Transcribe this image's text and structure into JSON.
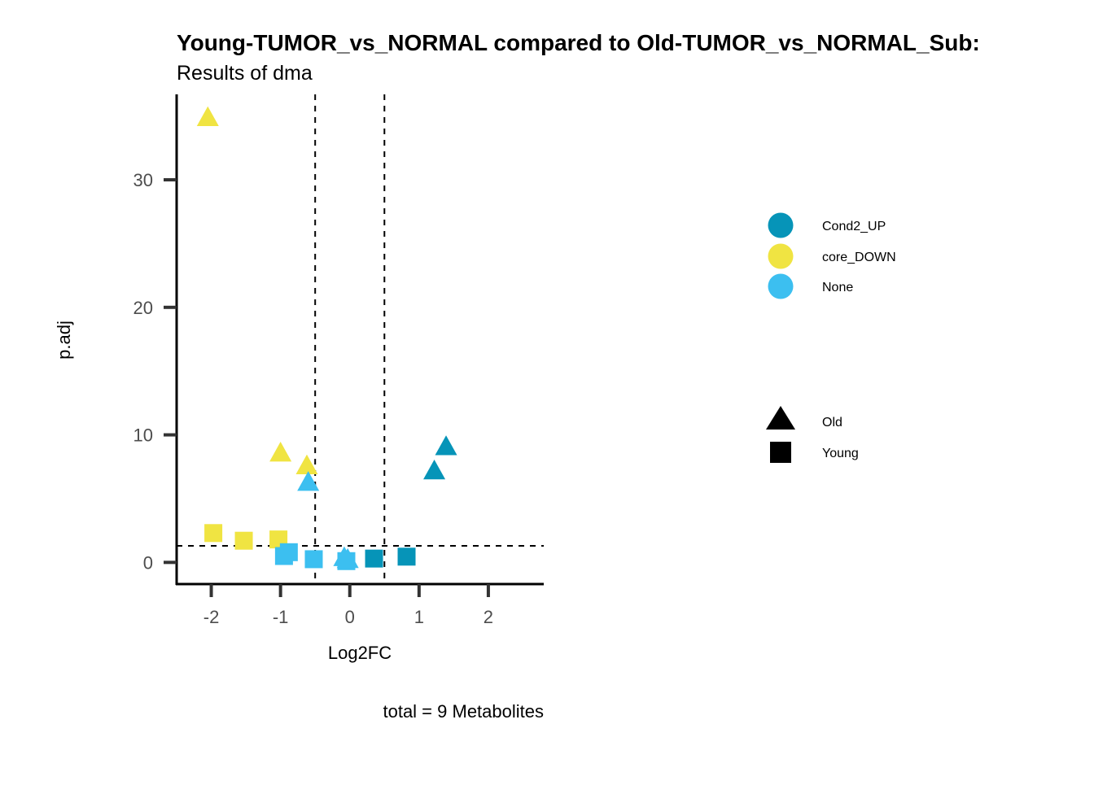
{
  "chart_data": {
    "type": "scatter",
    "title": "Young-TUMOR_vs_NORMAL compared to Old-TUMOR_vs_NORMAL_Sub:",
    "subtitle": "Results of dma",
    "xlabel": "Log2FC",
    "ylabel": "p.adj",
    "caption": "total = 9 Metabolites",
    "xlim": [
      -2.5,
      2.8
    ],
    "ylim": [
      -1.7,
      36.7
    ],
    "xticks": [
      -2,
      -1,
      0,
      1,
      2
    ],
    "xtick_labels": [
      "-2",
      "-1",
      "0",
      "1",
      "2"
    ],
    "yticks": [
      0,
      10,
      20,
      30
    ],
    "ytick_labels": [
      "0",
      "10",
      "20",
      "30"
    ],
    "reference_lines": {
      "vertical": [
        -0.5,
        0.5
      ],
      "horizontal": [
        1.3
      ]
    },
    "grid": false,
    "legend_placement": "right",
    "color_legend": [
      {
        "label": "Cond2_UP",
        "color": "#0694b8"
      },
      {
        "label": "core_DOWN",
        "color": "#f0e442"
      },
      {
        "label": "None",
        "color": "#3cbff0"
      }
    ],
    "shape_legend": [
      {
        "label": "Old",
        "shape": "triangle"
      },
      {
        "label": "Young",
        "shape": "square"
      }
    ],
    "points": [
      {
        "x": -2.05,
        "y": 34.8,
        "color": "core_DOWN",
        "shape": "Old"
      },
      {
        "x": -1.0,
        "y": 8.5,
        "color": "core_DOWN",
        "shape": "Old"
      },
      {
        "x": -0.62,
        "y": 7.5,
        "color": "core_DOWN",
        "shape": "Old"
      },
      {
        "x": -0.6,
        "y": 6.2,
        "color": "None",
        "shape": "Old"
      },
      {
        "x": -0.08,
        "y": 0.3,
        "color": "None",
        "shape": "Old"
      },
      {
        "x": -0.03,
        "y": 0.15,
        "color": "None",
        "shape": "Old"
      },
      {
        "x": 1.22,
        "y": 7.1,
        "color": "Cond2_UP",
        "shape": "Old"
      },
      {
        "x": 1.39,
        "y": 9.0,
        "color": "Cond2_UP",
        "shape": "Old"
      },
      {
        "x": -1.97,
        "y": 2.3,
        "color": "core_DOWN",
        "shape": "Young"
      },
      {
        "x": -1.53,
        "y": 1.7,
        "color": "core_DOWN",
        "shape": "Young"
      },
      {
        "x": -1.03,
        "y": 1.8,
        "color": "core_DOWN",
        "shape": "Young"
      },
      {
        "x": -0.88,
        "y": 0.8,
        "color": "None",
        "shape": "Young"
      },
      {
        "x": -0.95,
        "y": 0.5,
        "color": "None",
        "shape": "Young"
      },
      {
        "x": -0.52,
        "y": 0.25,
        "color": "None",
        "shape": "Young"
      },
      {
        "x": -0.05,
        "y": 0.1,
        "color": "None",
        "shape": "Young"
      },
      {
        "x": 0.35,
        "y": 0.3,
        "color": "Cond2_UP",
        "shape": "Young"
      },
      {
        "x": 0.82,
        "y": 0.45,
        "color": "Cond2_UP",
        "shape": "Young"
      }
    ]
  }
}
